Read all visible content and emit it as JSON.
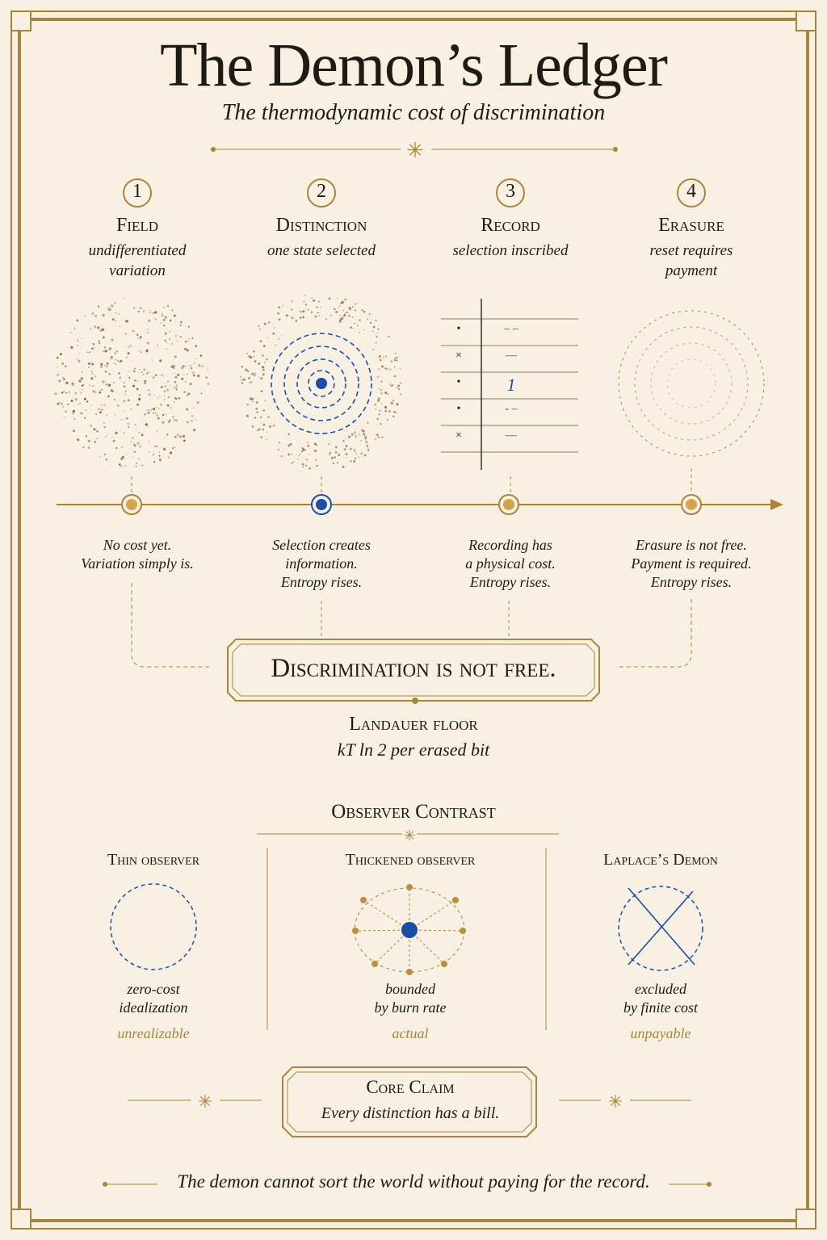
{
  "title": "The Demon’s Ledger",
  "subtitle": "The thermodynamic cost of discrimination",
  "stages": [
    {
      "number": "1",
      "name": "Field",
      "desc_lines": [
        "undifferentiated",
        "variation"
      ],
      "note_lines": [
        "No cost yet.",
        "Variation simply is."
      ]
    },
    {
      "number": "2",
      "name": "Distinction",
      "desc_lines": [
        "one state selected"
      ],
      "note_lines": [
        "Selection creates",
        "information.",
        "Entropy rises."
      ]
    },
    {
      "number": "3",
      "name": "Record",
      "desc_lines": [
        "selection inscribed"
      ],
      "note_lines": [
        "Recording has",
        "a physical cost.",
        "Entropy rises."
      ]
    },
    {
      "number": "4",
      "name": "Erasure",
      "desc_lines": [
        "reset requires",
        "payment"
      ],
      "note_lines": [
        "Erasure is not free.",
        "Payment is required.",
        "Entropy rises."
      ]
    }
  ],
  "record_table": {
    "symbols": [
      "•",
      "×",
      "•",
      "•",
      "×"
    ],
    "entries": [
      "– –",
      "—",
      "1",
      "- –",
      "—"
    ]
  },
  "banner": "Discrimination is not free.",
  "landauer": {
    "title": "Landauer floor",
    "formula": "kT ln 2 per erased bit"
  },
  "observer_contrast": {
    "title": "Observer Contrast",
    "observers": [
      {
        "name": "Thin observer",
        "desc_lines": [
          "zero-cost",
          "idealization"
        ],
        "verdict": "unrealizable"
      },
      {
        "name": "Thickened observer",
        "desc_lines": [
          "bounded",
          "by burn rate"
        ],
        "verdict": "actual"
      },
      {
        "name": "Laplace’s Demon",
        "desc_lines": [
          "excluded",
          "by finite cost"
        ],
        "verdict": "unpayable"
      }
    ]
  },
  "core_claim": {
    "title": "Core Claim",
    "text": "Every distinction has a bill."
  },
  "footer": "The demon cannot sort the world without paying for the record.",
  "colors": {
    "background": "#f8f0e3",
    "gold": "#a8853a",
    "blue": "#1a4fa8",
    "ink": "#1e1a14"
  }
}
